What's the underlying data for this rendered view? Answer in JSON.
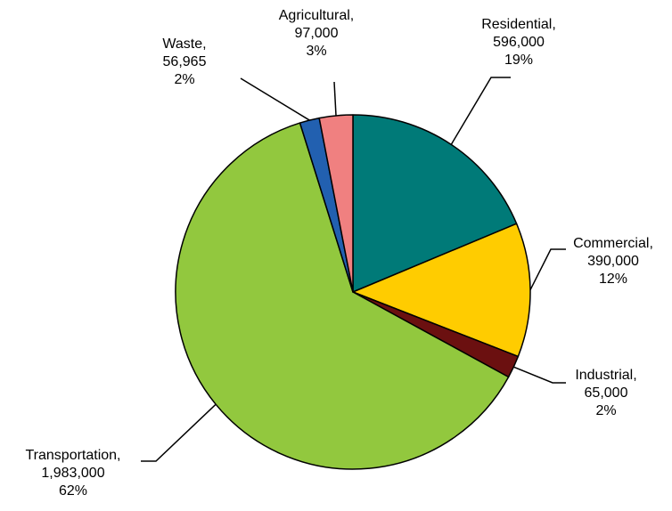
{
  "chart_data": {
    "type": "pie",
    "slices": [
      {
        "label": "Residential",
        "value": 596000,
        "value_text": "596,000",
        "percent": "19%",
        "color": "#007A78"
      },
      {
        "label": "Commercial",
        "value": 390000,
        "value_text": "390,000",
        "percent": "12%",
        "color": "#FFCC00"
      },
      {
        "label": "Industrial",
        "value": 65000,
        "value_text": "65,000",
        "percent": "2%",
        "color": "#6B1010"
      },
      {
        "label": "Transportation",
        "value": 1983000,
        "value_text": "1,983,000",
        "percent": "62%",
        "color": "#92C83E"
      },
      {
        "label": "Waste",
        "value": 56965,
        "value_text": "56,965",
        "percent": "2%",
        "color": "#2260B0"
      },
      {
        "label": "Agricultural",
        "value": 97000,
        "value_text": "97,000",
        "percent": "3%",
        "color": "#F08080"
      }
    ]
  }
}
